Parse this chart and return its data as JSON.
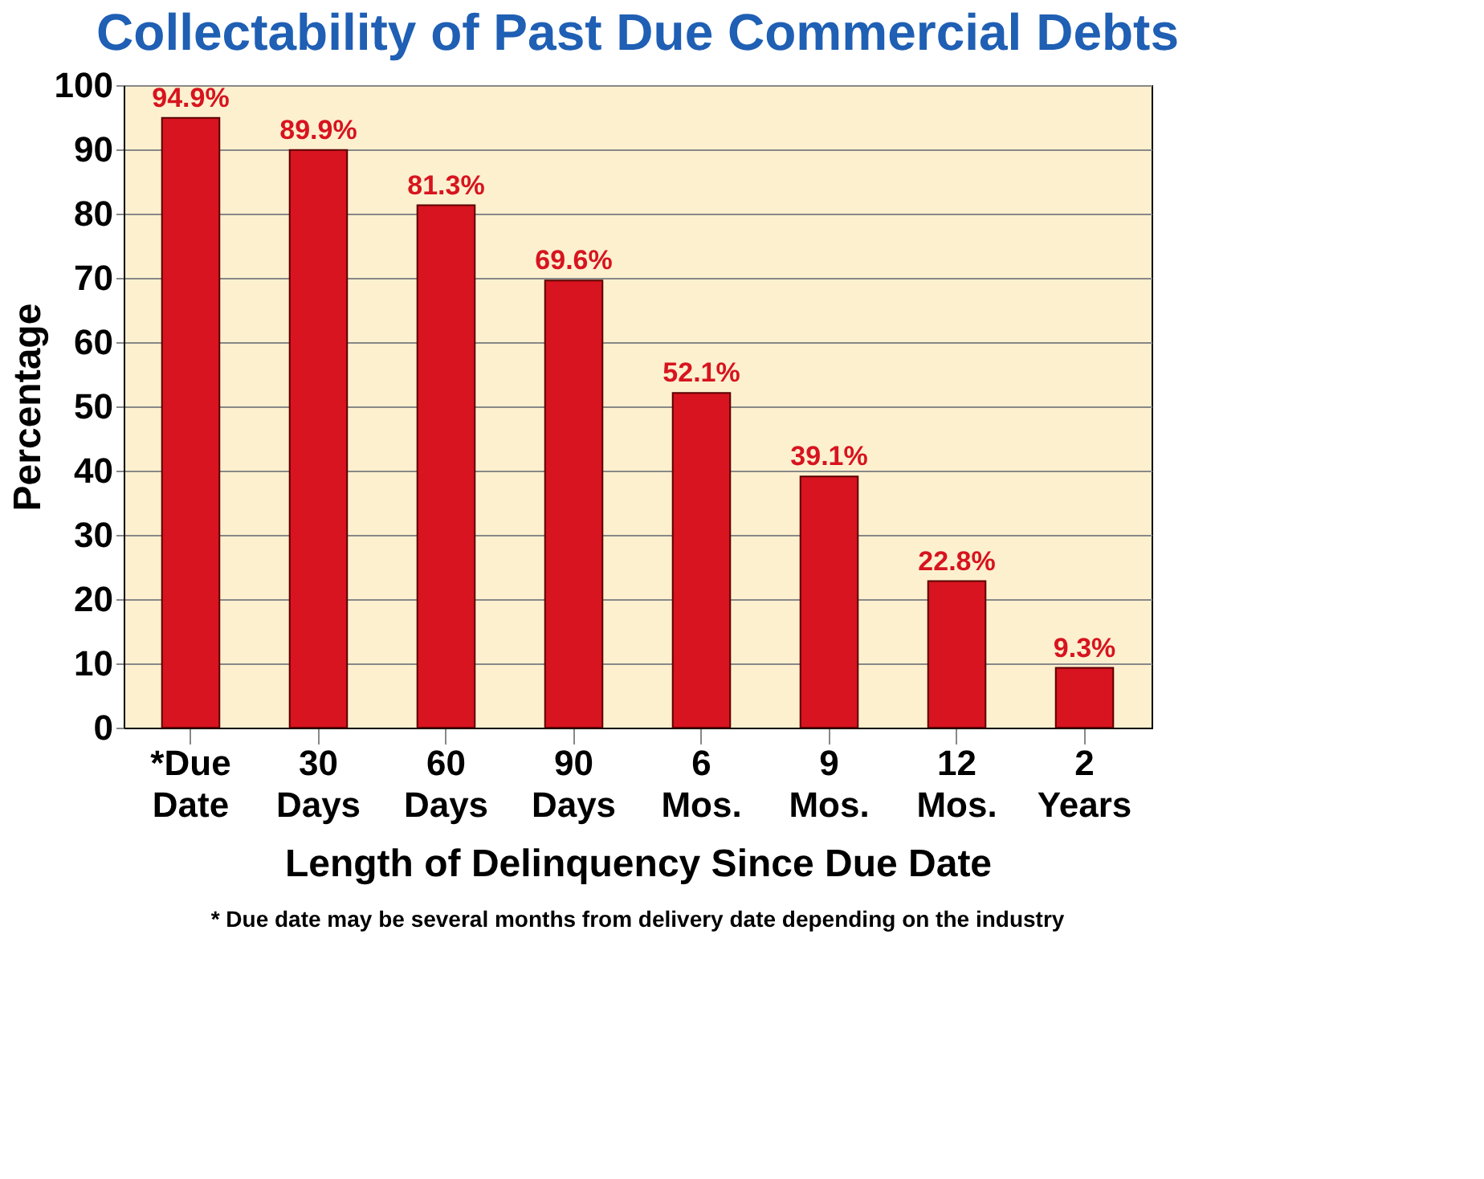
{
  "chart_data": {
    "type": "bar",
    "title": "Collectability of Past Due Commercial Debts",
    "xlabel": "Length of Delinquency Since Due Date",
    "ylabel": "Percentage",
    "categories": [
      "*Due Date",
      "30 Days",
      "60 Days",
      "90 Days",
      "6 Mos.",
      "9 Mos.",
      "12 Mos.",
      "2 Years"
    ],
    "values": [
      94.9,
      89.9,
      81.3,
      69.6,
      52.1,
      39.1,
      22.8,
      9.3
    ],
    "value_labels": [
      "94.9%",
      "89.9%",
      "81.3%",
      "69.6%",
      "52.1%",
      "39.1%",
      "22.8%",
      "9.3%"
    ],
    "color": "#d7141f",
    "ylim": [
      0,
      100
    ],
    "yticks": [
      0,
      10,
      20,
      30,
      40,
      50,
      60,
      70,
      80,
      90,
      100
    ],
    "grid": "y",
    "annotations": [
      "* Due date may be several months from delivery date depending on the industry"
    ]
  }
}
